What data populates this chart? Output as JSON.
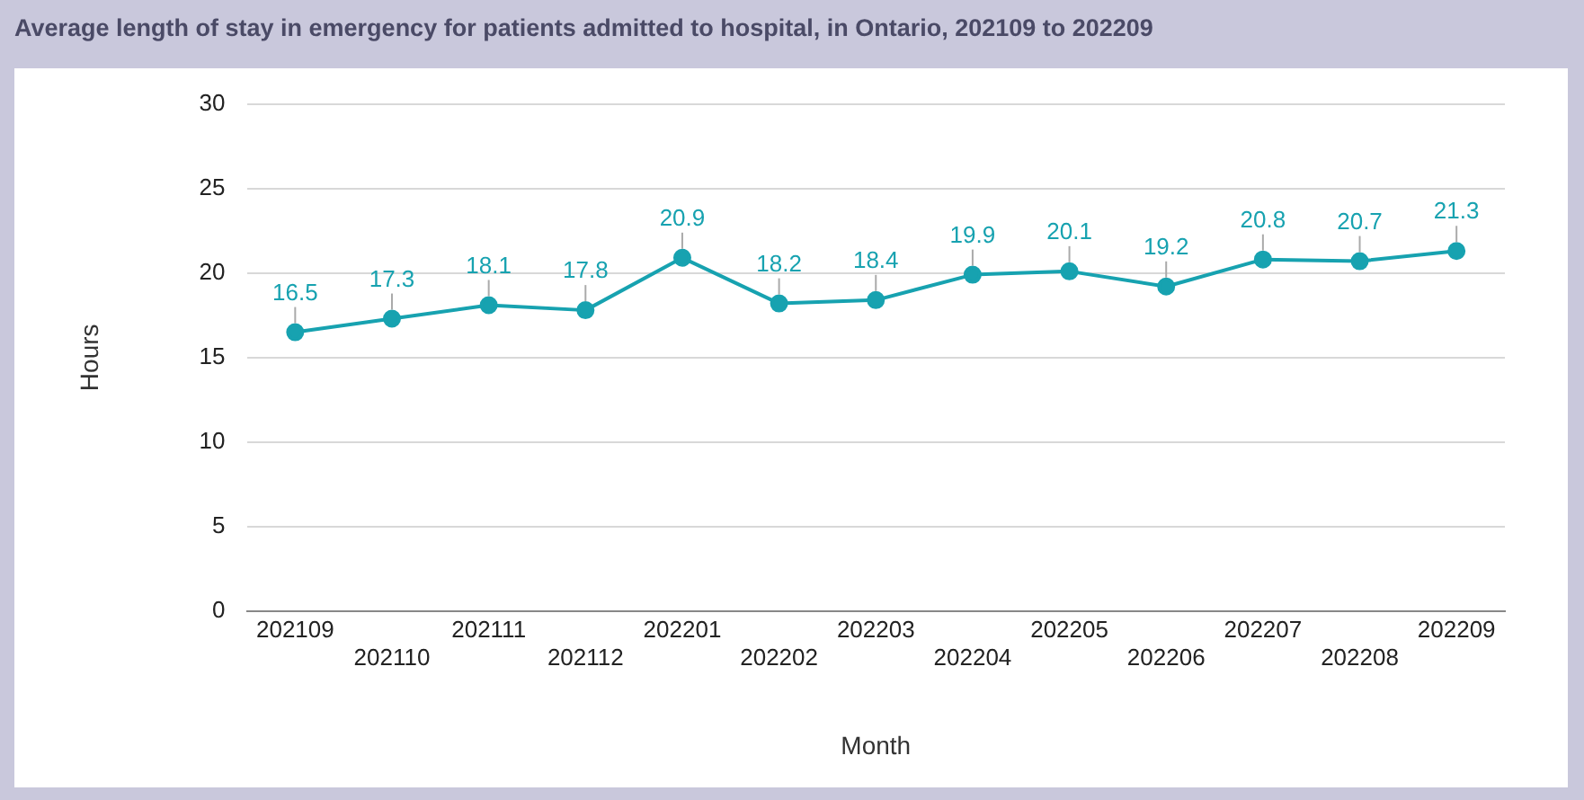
{
  "chart_data": {
    "type": "line",
    "title": "Average length of stay in emergency for patients admitted to hospital, in Ontario, 202109 to 202209",
    "xlabel": "Month",
    "ylabel": "Hours",
    "categories": [
      "202109",
      "202110",
      "202111",
      "202112",
      "202201",
      "202202",
      "202203",
      "202204",
      "202205",
      "202206",
      "202207",
      "202208",
      "202209"
    ],
    "series": [
      {
        "color": "#17a2b0",
        "values": [
          16.5,
          17.3,
          18.1,
          17.8,
          20.9,
          18.2,
          18.4,
          19.9,
          20.1,
          19.2,
          20.8,
          20.7,
          21.3
        ]
      }
    ],
    "ylim": [
      0,
      30
    ],
    "yticks": [
      0,
      5,
      10,
      15,
      20,
      25,
      30
    ],
    "grid": "y",
    "legend": false,
    "marker": "circle",
    "line_style": "solid",
    "data_labels": true
  }
}
